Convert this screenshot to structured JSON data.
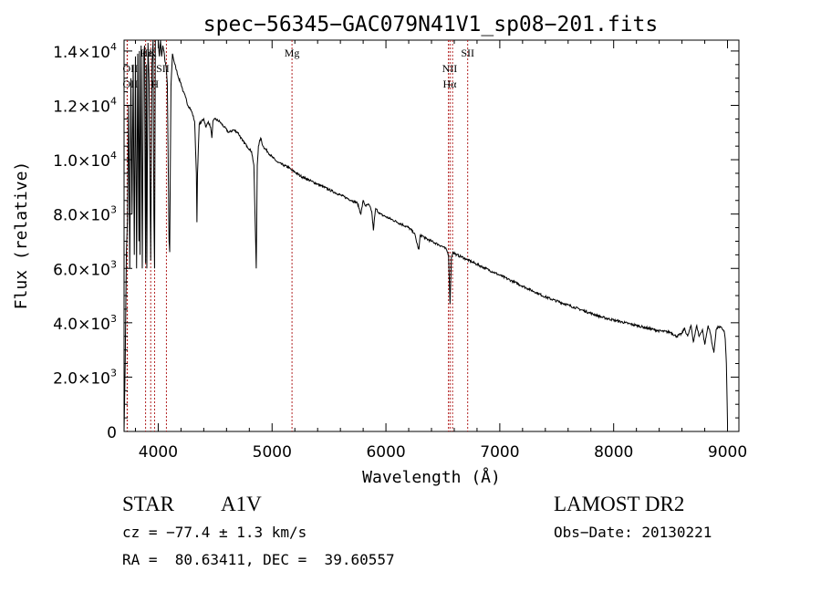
{
  "chart_data": {
    "type": "line",
    "title": "spec−56345−GAC079N41V1_sp08−201.fits",
    "xlabel": "Wavelength (Å)",
    "ylabel": "Flux (relative)",
    "xlim": [
      3700,
      9100
    ],
    "ylim": [
      0,
      14400
    ],
    "x_ticks": [
      {
        "value": 4000,
        "label": "4000"
      },
      {
        "value": 5000,
        "label": "5000"
      },
      {
        "value": 6000,
        "label": "6000"
      },
      {
        "value": 7000,
        "label": "7000"
      },
      {
        "value": 8000,
        "label": "8000"
      },
      {
        "value": 9000,
        "label": "9000"
      }
    ],
    "y_ticks": [
      {
        "value": 0,
        "label": "0",
        "exp": ""
      },
      {
        "value": 2000,
        "label": "2.0×10",
        "exp": "3"
      },
      {
        "value": 4000,
        "label": "4.0×10",
        "exp": "3"
      },
      {
        "value": 6000,
        "label": "6.0×10",
        "exp": "3"
      },
      {
        "value": 8000,
        "label": "8.0×10",
        "exp": "3"
      },
      {
        "value": 10000,
        "label": "1.0×10",
        "exp": "4"
      },
      {
        "value": 12000,
        "label": "1.2×10",
        "exp": "4"
      },
      {
        "value": 14000,
        "label": "1.4×10",
        "exp": "4"
      }
    ],
    "line_markers": [
      {
        "name": "OII",
        "wavelength": 3727
      },
      {
        "name": "OII",
        "wavelength": 3729
      },
      {
        "name": "Hepsilon",
        "wavelength": 3889
      },
      {
        "name": "K",
        "wavelength": 3934
      },
      {
        "name": "H",
        "wavelength": 3968
      },
      {
        "name": "SII",
        "wavelength": 4072
      },
      {
        "name": "Mg",
        "wavelength": 5175
      },
      {
        "name": "NII",
        "wavelength": 6549
      },
      {
        "name": "Halpha",
        "wavelength": 6563
      },
      {
        "name": "NII",
        "wavelength": 6585
      },
      {
        "name": "SII",
        "wavelength": 6718
      }
    ],
    "line_labels": [
      {
        "text": "OII",
        "wavelength": 3755,
        "row": 1
      },
      {
        "text": "OII",
        "wavelength": 3755,
        "row": 2
      },
      {
        "text": "Hε",
        "wavelength": 3895,
        "row": 0
      },
      {
        "text": "K",
        "wavelength": 3950,
        "row": 0
      },
      {
        "text": "SII",
        "wavelength": 4040,
        "row": 1
      },
      {
        "text": "H",
        "wavelength": 3970,
        "row": 2
      },
      {
        "text": "Mg",
        "wavelength": 5175,
        "row": 0
      },
      {
        "text": "NII",
        "wavelength": 6560,
        "row": 1
      },
      {
        "text": "Hα",
        "wavelength": 6560,
        "row": 2
      },
      {
        "text": "SII",
        "wavelength": 6718,
        "row": 0
      }
    ],
    "series": [
      {
        "name": "flux",
        "x": [
          3700,
          3710,
          3720,
          3730,
          3740,
          3750,
          3760,
          3770,
          3780,
          3790,
          3800,
          3810,
          3820,
          3830,
          3835,
          3840,
          3850,
          3860,
          3870,
          3880,
          3885,
          3889,
          3895,
          3900,
          3910,
          3920,
          3934,
          3945,
          3955,
          3962,
          3968,
          3975,
          3985,
          4000,
          4010,
          4020,
          4030,
          4040,
          4050,
          4060,
          4070,
          4080,
          4090,
          4095,
          4101,
          4106,
          4112,
          4125,
          4140,
          4160,
          4180,
          4200,
          4220,
          4240,
          4260,
          4280,
          4300,
          4320,
          4335,
          4340,
          4345,
          4360,
          4380,
          4400,
          4420,
          4440,
          4460,
          4471,
          4480,
          4500,
          4540,
          4580,
          4620,
          4660,
          4700,
          4740,
          4780,
          4820,
          4840,
          4850,
          4861,
          4870,
          4880,
          4900,
          4920,
          4960,
          5000,
          5050,
          5100,
          5150,
          5175,
          5200,
          5250,
          5300,
          5350,
          5400,
          5450,
          5500,
          5550,
          5600,
          5650,
          5700,
          5750,
          5780,
          5800,
          5820,
          5850,
          5875,
          5890,
          5896,
          5910,
          5950,
          6000,
          6050,
          6100,
          6150,
          6200,
          6250,
          6280,
          6290,
          6300,
          6320,
          6350,
          6400,
          6450,
          6500,
          6530,
          6550,
          6563,
          6575,
          6590,
          6620,
          6650,
          6700,
          6750,
          6800,
          6900,
          7000,
          7100,
          7200,
          7300,
          7400,
          7500,
          7600,
          7700,
          7800,
          7900,
          8000,
          8100,
          8200,
          8300,
          8400,
          8500,
          8550,
          8600,
          8620,
          8650,
          8680,
          8700,
          8730,
          8750,
          8780,
          8800,
          8830,
          8850,
          8870,
          8880,
          8890,
          8900,
          8920,
          8950,
          8970,
          8980,
          8990,
          9000
        ],
        "y": [
          0,
          2500,
          6500,
          7800,
          12000,
          6000,
          13000,
          8000,
          13500,
          6500,
          13800,
          6000,
          13900,
          7000,
          14000,
          6500,
          14200,
          6000,
          13800,
          14200,
          9000,
          6200,
          13500,
          6000,
          14300,
          12800,
          6300,
          13500,
          14400,
          8000,
          6000,
          14600,
          14600,
          14400,
          13800,
          14400,
          13800,
          14200,
          14000,
          13600,
          13400,
          12800,
          9000,
          7000,
          6600,
          9500,
          12700,
          13900,
          13600,
          13300,
          13000,
          12800,
          12500,
          12300,
          12000,
          11900,
          11700,
          11400,
          9500,
          7700,
          9500,
          11300,
          11400,
          11500,
          11200,
          11400,
          11200,
          10800,
          11400,
          11500,
          11400,
          11200,
          11000,
          11100,
          11000,
          10700,
          10500,
          10300,
          9800,
          8000,
          6000,
          9800,
          10500,
          10800,
          10500,
          10300,
          10100,
          9900,
          9800,
          9700,
          9600,
          9550,
          9400,
          9300,
          9200,
          9100,
          9000,
          8900,
          8800,
          8700,
          8600,
          8500,
          8400,
          8000,
          8500,
          8300,
          8350,
          8100,
          7400,
          7700,
          8200,
          8000,
          7900,
          7800,
          7700,
          7600,
          7500,
          7300,
          6800,
          6700,
          7200,
          7200,
          7100,
          7000,
          6900,
          6800,
          6700,
          6500,
          4700,
          6400,
          6600,
          6500,
          6450,
          6350,
          6250,
          6150,
          5950,
          5750,
          5550,
          5350,
          5150,
          4950,
          4800,
          4650,
          4500,
          4350,
          4200,
          4100,
          4000,
          3900,
          3800,
          3700,
          3650,
          3500,
          3600,
          3800,
          3500,
          3900,
          3300,
          3900,
          3500,
          3750,
          3200,
          3900,
          3600,
          3100,
          2900,
          3300,
          3750,
          3850,
          3800,
          3700,
          3400,
          2500,
          300
        ]
      }
    ]
  },
  "annotations": {
    "object_class": "STAR",
    "subclass": "A1V",
    "survey": "LAMOST DR2",
    "redshift": "cz = −77.4 ± 1.3 km/s",
    "obs_date": "Obs−Date: 20130221",
    "coords": "RA =  80.63411, DEC =  39.60557"
  },
  "colors": {
    "line": "#000000",
    "marker": "#b22222",
    "axis": "#000000"
  }
}
